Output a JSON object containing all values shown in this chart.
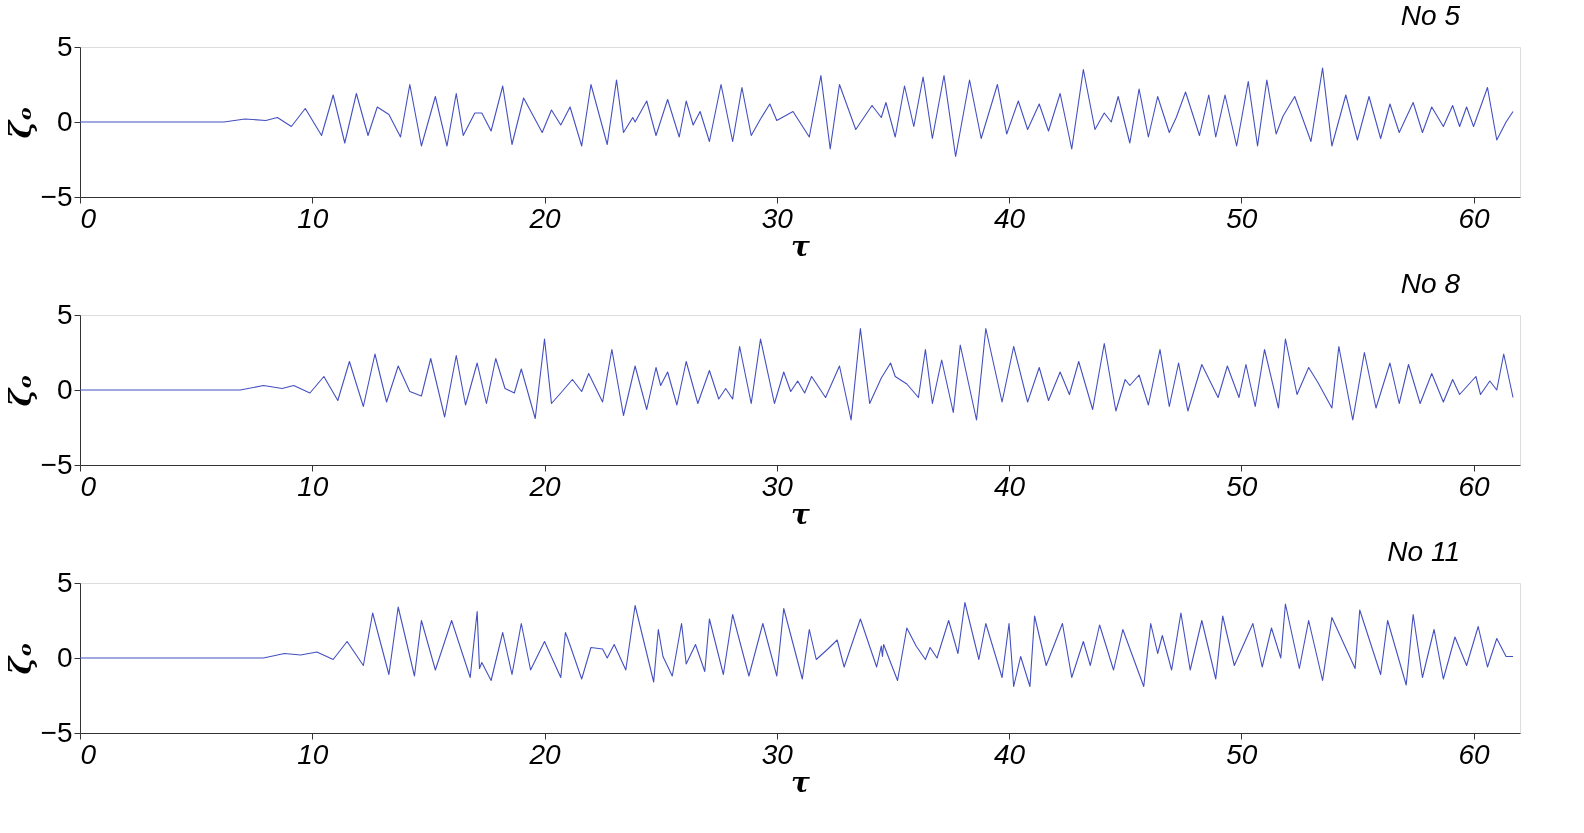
{
  "chart_data": [
    {
      "type": "line",
      "title": "No 5",
      "xlabel": "τ",
      "ylabel": "ζₒ",
      "xlim": [
        0,
        62
      ],
      "xticks": [
        0,
        10,
        20,
        30,
        40,
        50,
        60
      ],
      "ylim": [
        -5,
        5
      ],
      "yticks": [
        -5,
        0,
        5
      ],
      "x": [
        0,
        6.2,
        7.1,
        8.0,
        8.5,
        9.1,
        9.7,
        10.4,
        10.9,
        11.4,
        11.9,
        12.4,
        12.8,
        13.3,
        13.8,
        14.2,
        14.7,
        15.3,
        15.8,
        16.2,
        16.5,
        17.0,
        17.3,
        17.7,
        18.2,
        18.6,
        19.1,
        19.9,
        20.3,
        20.7,
        21.1,
        21.6,
        22.0,
        22.7,
        23.1,
        23.4,
        23.8,
        23.9,
        24.4,
        24.8,
        25.3,
        25.8,
        26.1,
        26.4,
        26.7,
        27.1,
        27.6,
        28.1,
        28.5,
        28.9,
        29.3,
        29.7,
        30.0,
        30.7,
        31.4,
        31.9,
        32.3,
        32.7,
        33.4,
        34.1,
        34.5,
        34.7,
        35.1,
        35.5,
        35.9,
        36.3,
        36.7,
        37.2,
        37.7,
        38.3,
        38.8,
        39.5,
        39.9,
        40.4,
        40.8,
        41.3,
        41.7,
        42.2,
        42.7,
        43.2,
        43.7,
        44.1,
        44.4,
        44.7,
        45.2,
        45.6,
        46.0,
        46.4,
        46.9,
        47.2,
        47.6,
        48.2,
        48.6,
        48.9,
        49.3,
        49.8,
        50.3,
        50.7,
        51.1,
        51.5,
        51.8,
        52.3,
        53.0,
        53.5,
        53.9,
        54.5,
        55.0,
        55.5,
        56.0,
        56.4,
        56.8,
        57.4,
        57.8,
        58.2,
        58.7,
        59.1,
        59.4,
        59.7,
        60.0,
        60.6,
        61.0,
        61.4,
        61.7
      ],
      "series": [
        {
          "color": "#4450c0",
          "values": [
            0,
            0,
            0.2,
            0.1,
            0.3,
            -0.3,
            0.9,
            -0.9,
            1.8,
            -1.4,
            1.9,
            -0.9,
            1.0,
            0.5,
            -1.0,
            2.5,
            -1.6,
            1.7,
            -1.6,
            1.9,
            -0.9,
            0.6,
            0.6,
            -0.6,
            2.4,
            -1.5,
            1.6,
            -0.7,
            0.8,
            -0.2,
            1.0,
            -1.6,
            2.5,
            -1.5,
            2.8,
            -0.7,
            0.3,
            0,
            1.4,
            -0.9,
            1.5,
            -1.0,
            1.4,
            -0.2,
            0.7,
            -1.3,
            2.5,
            -1.3,
            2.3,
            -0.9,
            0.2,
            1.2,
            0.1,
            0.7,
            -1.0,
            3.1,
            -1.8,
            2.5,
            -0.5,
            1.1,
            0.3,
            1.3,
            -1.0,
            2.4,
            -0.3,
            3.0,
            -1.1,
            3.1,
            -2.3,
            2.8,
            -1.1,
            2.5,
            -0.8,
            1.4,
            -0.5,
            1.2,
            -0.6,
            1.9,
            -1.8,
            3.5,
            -0.5,
            0.6,
            0,
            1.7,
            -1.4,
            2.2,
            -1.0,
            1.7,
            -0.7,
            0.3,
            2.0,
            -0.9,
            1.8,
            -1.0,
            1.8,
            -1.6,
            2.7,
            -1.6,
            2.8,
            -0.8,
            0.4,
            1.7,
            -1.3,
            3.6,
            -1.6,
            1.8,
            -1.2,
            1.7,
            -1.1,
            1.2,
            -0.7,
            1.3,
            -0.7,
            1.0,
            -0.3,
            1.1,
            -0.3,
            1.0,
            -0.3,
            2.3,
            -1.2,
            0,
            0.7
          ]
        }
      ]
    },
    {
      "type": "line",
      "title": "No 8",
      "xlabel": "τ",
      "ylabel": "ζₒ",
      "xlim": [
        0,
        62
      ],
      "xticks": [
        0,
        10,
        20,
        30,
        40,
        50,
        60
      ],
      "ylim": [
        -5,
        5
      ],
      "yticks": [
        -5,
        0,
        5
      ],
      "x": [
        0,
        6.9,
        7.9,
        8.7,
        9.2,
        9.9,
        10.5,
        11.1,
        11.6,
        12.2,
        12.7,
        13.2,
        13.7,
        14.2,
        14.7,
        15.1,
        15.7,
        16.2,
        16.6,
        17.1,
        17.5,
        17.9,
        18.3,
        18.7,
        19.0,
        19.6,
        20.0,
        20.3,
        20.7,
        21.2,
        21.6,
        21.9,
        22.5,
        22.9,
        23.4,
        23.9,
        24.4,
        24.8,
        25.0,
        25.3,
        25.7,
        26.1,
        26.6,
        27.1,
        27.5,
        27.8,
        28.1,
        28.4,
        28.9,
        29.3,
        29.9,
        30.3,
        30.6,
        30.9,
        31.2,
        31.5,
        32.1,
        32.7,
        33.2,
        33.6,
        34.0,
        34.5,
        34.9,
        35.1,
        35.6,
        36.1,
        36.4,
        36.7,
        37.1,
        37.6,
        37.9,
        38.6,
        39.0,
        39.7,
        40.2,
        40.8,
        41.3,
        41.7,
        42.2,
        42.6,
        43.0,
        43.6,
        44.1,
        44.6,
        45.0,
        45.2,
        45.6,
        46.0,
        46.5,
        46.9,
        47.3,
        47.7,
        48.3,
        49.0,
        49.4,
        49.9,
        50.2,
        50.6,
        51.0,
        51.6,
        51.9,
        52.4,
        52.9,
        53.3,
        53.9,
        54.2,
        54.8,
        55.3,
        55.8,
        56.4,
        56.8,
        57.2,
        57.7,
        58.2,
        58.7,
        59.1,
        59.4,
        60.1,
        60.3,
        60.7,
        61.0,
        61.3,
        61.7
      ],
      "series": [
        {
          "color": "#4450c0",
          "values": [
            0,
            0,
            0.3,
            0.1,
            0.3,
            -0.2,
            0.9,
            -0.7,
            1.9,
            -1.1,
            2.4,
            -0.8,
            1.6,
            -0.1,
            -0.4,
            2.1,
            -1.8,
            2.3,
            -1.0,
            1.8,
            -0.9,
            2.1,
            0.1,
            -0.2,
            1.4,
            -1.9,
            3.4,
            -0.9,
            -0.2,
            0.7,
            -0.1,
            1.1,
            -0.8,
            2.7,
            -1.7,
            1.6,
            -1.3,
            1.5,
            0.3,
            1.2,
            -1.0,
            1.9,
            -0.9,
            1.3,
            -0.6,
            0.1,
            -0.6,
            2.9,
            -0.9,
            3.4,
            -0.9,
            1.2,
            -0.1,
            0.6,
            -0.2,
            0.9,
            -0.5,
            1.6,
            -2.0,
            4.1,
            -0.9,
            0.8,
            1.8,
            0.9,
            0.4,
            -0.5,
            2.7,
            -0.9,
            2.0,
            -1.5,
            3.0,
            -2.0,
            4.1,
            -0.8,
            2.9,
            -0.8,
            1.5,
            -0.7,
            1.2,
            -0.3,
            1.9,
            -1.3,
            3.1,
            -1.4,
            0.7,
            0.3,
            1.0,
            -1.0,
            2.7,
            -1.1,
            1.8,
            -1.4,
            1.7,
            -0.5,
            1.6,
            -0.5,
            1.7,
            -1.1,
            2.7,
            -1.2,
            3.4,
            -0.3,
            1.5,
            0.5,
            -1.2,
            2.9,
            -2.0,
            2.5,
            -1.2,
            1.8,
            -0.9,
            1.7,
            -0.9,
            1.1,
            -0.8,
            0.7,
            -0.3,
            0.9,
            -0.3,
            0.6,
            0,
            2.4,
            -0.5
          ]
        }
      ]
    },
    {
      "type": "line",
      "title": "No 11",
      "xlabel": "τ",
      "ylabel": "ζₒ",
      "xlim": [
        0,
        62
      ],
      "xticks": [
        0,
        10,
        20,
        30,
        40,
        50,
        60
      ],
      "ylim": [
        -5,
        5
      ],
      "yticks": [
        -5,
        0,
        5
      ],
      "x": [
        0,
        7.9,
        8.8,
        9.5,
        10.2,
        10.9,
        11.5,
        12.2,
        12.6,
        13.3,
        13.7,
        14.4,
        14.7,
        15.3,
        16.0,
        16.8,
        17.1,
        17.2,
        17.3,
        17.7,
        18.2,
        18.6,
        19.0,
        19.4,
        20.0,
        20.7,
        20.9,
        21.0,
        21.6,
        22.0,
        22.5,
        22.7,
        23.0,
        23.5,
        23.9,
        24.7,
        24.9,
        25.1,
        25.5,
        25.9,
        26.1,
        26.5,
        26.9,
        27.1,
        27.7,
        28.1,
        28.8,
        29.4,
        30.0,
        30.3,
        31.1,
        31.4,
        31.7,
        32.2,
        32.6,
        32.9,
        33.6,
        34.3,
        34.5,
        34.55,
        34.6,
        35.2,
        35.6,
        36.0,
        36.4,
        36.6,
        36.9,
        37.4,
        37.8,
        38.1,
        38.7,
        39.0,
        39.7,
        40.0,
        40.2,
        40.5,
        40.9,
        41.1,
        41.6,
        42.3,
        42.7,
        43.2,
        43.5,
        43.9,
        44.5,
        44.9,
        45.8,
        46.1,
        46.4,
        46.6,
        47.0,
        47.4,
        47.8,
        48.3,
        48.9,
        49.2,
        49.7,
        50.5,
        50.9,
        51.3,
        51.7,
        51.9,
        52.5,
        52.9,
        53.5,
        53.9,
        54.9,
        55.1,
        56.0,
        56.3,
        57.1,
        57.4,
        57.8,
        58.3,
        58.7,
        59.2,
        59.7,
        60.2,
        60.6,
        61.0,
        61.4,
        61.7
      ],
      "series": [
        {
          "color": "#4450c0",
          "values": [
            0,
            0,
            0.3,
            0.2,
            0.4,
            -0.1,
            1.1,
            -0.5,
            3.0,
            -1.1,
            3.4,
            -1.2,
            2.5,
            -0.8,
            2.5,
            -1.3,
            3.1,
            -0.7,
            -0.3,
            -1.5,
            1.7,
            -1.1,
            2.3,
            -0.8,
            1.1,
            -1.3,
            1.7,
            1.3,
            -1.4,
            0.7,
            0.6,
            0,
            0.9,
            -0.8,
            3.5,
            -1.6,
            1.9,
            0.1,
            -1.2,
            2.3,
            -0.4,
            0.9,
            -0.9,
            2.6,
            -1.1,
            2.9,
            -1.2,
            2.3,
            -1.2,
            3.3,
            -1.4,
            1.9,
            -0.1,
            0.6,
            1.2,
            -0.6,
            2.6,
            -0.6,
            0.8,
            0.1,
            0.9,
            -1.5,
            2.0,
            0.8,
            -0.1,
            0.7,
            0,
            2.5,
            0.3,
            3.7,
            -0.1,
            2.3,
            -1.3,
            2.3,
            -1.9,
            0.1,
            -1.9,
            2.8,
            -0.5,
            2.3,
            -1.3,
            1.1,
            -0.5,
            2.2,
            -0.8,
            1.9,
            -1.9,
            2.3,
            0.3,
            1.5,
            -0.8,
            3.0,
            -0.8,
            2.5,
            -1.4,
            2.8,
            -0.5,
            2.3,
            -0.6,
            2.0,
            0,
            3.6,
            -0.7,
            2.5,
            -1.5,
            2.7,
            -0.7,
            3.2,
            -1.1,
            2.5,
            -1.8,
            2.9,
            -1.3,
            1.9,
            -1.4,
            1.4,
            -0.5,
            2.1,
            -0.6,
            1.3,
            0.1,
            0.1
          ]
        }
      ]
    }
  ]
}
